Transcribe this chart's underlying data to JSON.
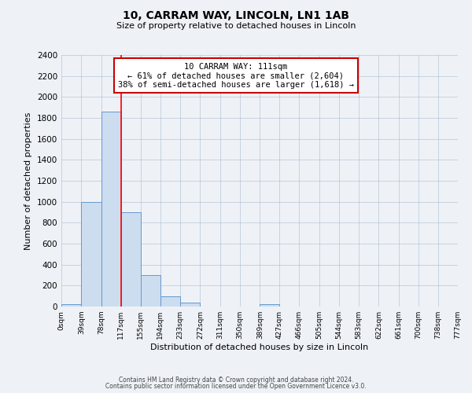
{
  "title": "10, CARRAM WAY, LINCOLN, LN1 1AB",
  "subtitle": "Size of property relative to detached houses in Lincoln",
  "xlabel": "Distribution of detached houses by size in Lincoln",
  "ylabel": "Number of detached properties",
  "footer_line1": "Contains HM Land Registry data © Crown copyright and database right 2024.",
  "footer_line2": "Contains public sector information licensed under the Open Government Licence v3.0.",
  "bar_edges": [
    0,
    39,
    78,
    117,
    155,
    194,
    233,
    272,
    311,
    350,
    389,
    427,
    466,
    505,
    544,
    583,
    622,
    661,
    700,
    738,
    777
  ],
  "bar_heights": [
    20,
    1000,
    1860,
    900,
    300,
    100,
    40,
    0,
    0,
    0,
    25,
    0,
    0,
    0,
    0,
    0,
    0,
    0,
    0,
    0
  ],
  "bar_color": "#ccddf0",
  "bar_edge_color": "#6699cc",
  "red_line_x": 117,
  "ylim": [
    0,
    2400
  ],
  "yticks": [
    0,
    200,
    400,
    600,
    800,
    1000,
    1200,
    1400,
    1600,
    1800,
    2000,
    2200,
    2400
  ],
  "xtick_labels": [
    "0sqm",
    "39sqm",
    "78sqm",
    "117sqm",
    "155sqm",
    "194sqm",
    "233sqm",
    "272sqm",
    "311sqm",
    "350sqm",
    "389sqm",
    "427sqm",
    "466sqm",
    "505sqm",
    "544sqm",
    "583sqm",
    "622sqm",
    "661sqm",
    "700sqm",
    "738sqm",
    "777sqm"
  ],
  "annotation_title": "10 CARRAM WAY: 111sqm",
  "annotation_line1": "← 61% of detached houses are smaller (2,604)",
  "annotation_line2": "38% of semi-detached houses are larger (1,618) →",
  "annotation_box_color": "#ffffff",
  "annotation_box_edge": "#cc0000",
  "background_color": "#eef2f7"
}
